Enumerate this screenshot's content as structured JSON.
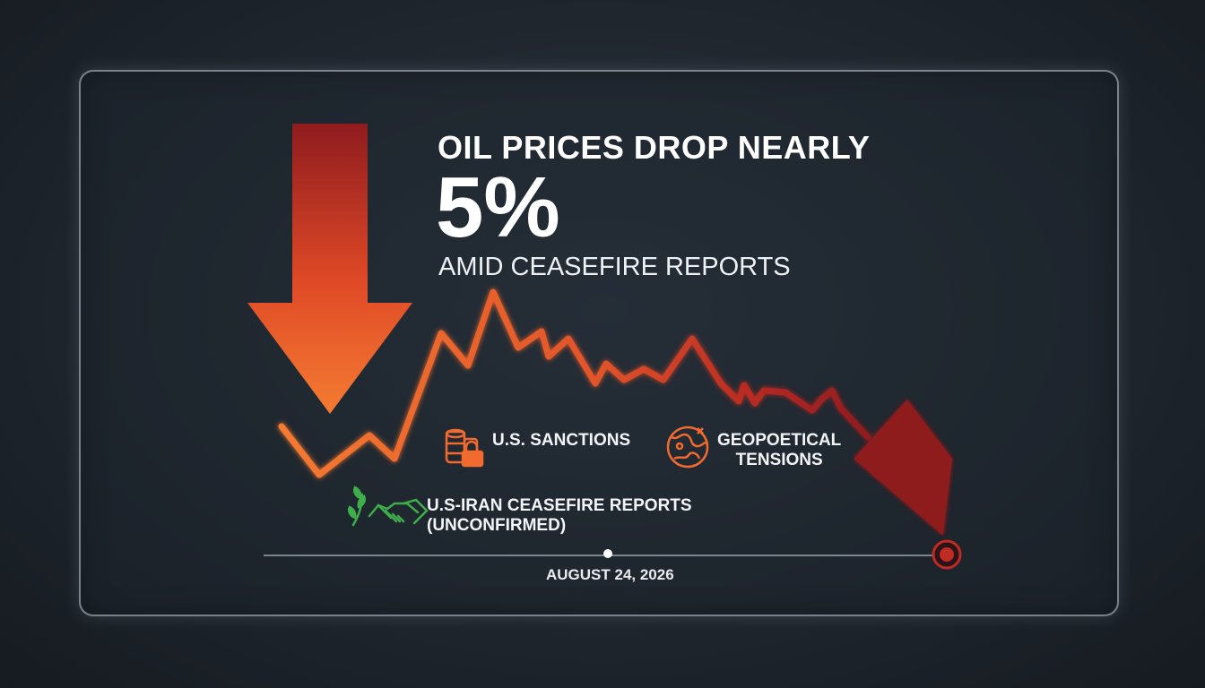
{
  "headline": {
    "line1": "OIL PRICES DROP NEARLY",
    "percent": "5%",
    "line2": "AMID CEASEFIRE REPORTS"
  },
  "factors": {
    "sanctions": "U.S. SANCTIONS",
    "geopolitical_line1": "GEOPOETICAL",
    "geopolitical_line2": "TENSIONS",
    "ceasefire_line1": "U.S-IRAN CEASEFIRE REPORTS",
    "ceasefire_line2": "(UNCONFIRMED)"
  },
  "timeline": {
    "date": "AUGUST 24, 2026"
  },
  "colors": {
    "orange": "#f26a2e",
    "dark_red": "#8e1c1f",
    "green": "#3fae4a",
    "background": "#1f262e"
  },
  "icons": [
    "down-arrow-icon",
    "oil-barrels-lock-icon",
    "globe-conflict-icon",
    "olive-branch-handshake-icon",
    "target-marker-icon"
  ]
}
